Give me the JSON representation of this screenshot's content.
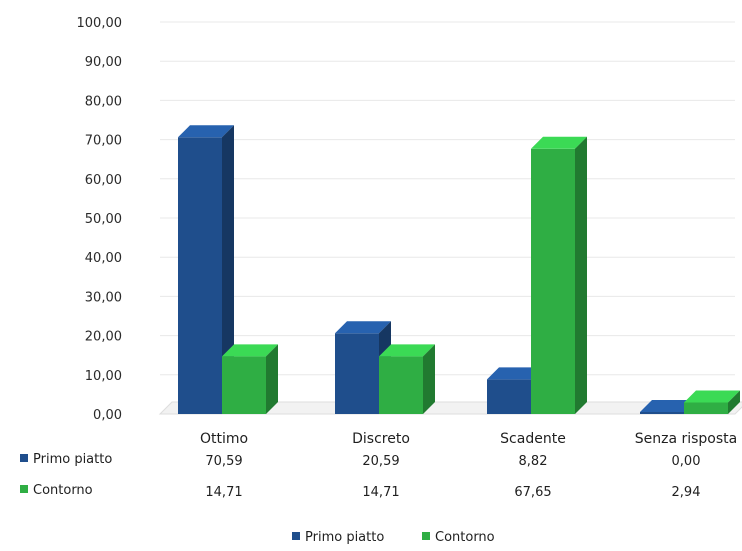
{
  "chart_data": {
    "type": "bar",
    "categories": [
      "Ottimo",
      "Discreto",
      "Scadente",
      "Senza risposta"
    ],
    "series": [
      {
        "name": "Primo piatto",
        "values": [
          70.59,
          20.59,
          8.82,
          0.0
        ],
        "labels": [
          "70,59",
          "20,59",
          "8,82",
          "0,00"
        ],
        "color": "#1f4e8c"
      },
      {
        "name": "Contorno",
        "values": [
          14.71,
          14.71,
          67.65,
          2.94
        ],
        "labels": [
          "14,71",
          "14,71",
          "67,65",
          "2,94"
        ],
        "color": "#2fae44"
      }
    ],
    "yticks": [
      "0,00",
      "10,00",
      "20,00",
      "30,00",
      "40,00",
      "50,00",
      "60,00",
      "70,00",
      "80,00",
      "90,00",
      "100,00"
    ],
    "ylim": [
      0,
      100
    ],
    "grid": true,
    "legend": [
      "Primo piatto",
      "Contorno"
    ],
    "legend_position": "bottom"
  }
}
